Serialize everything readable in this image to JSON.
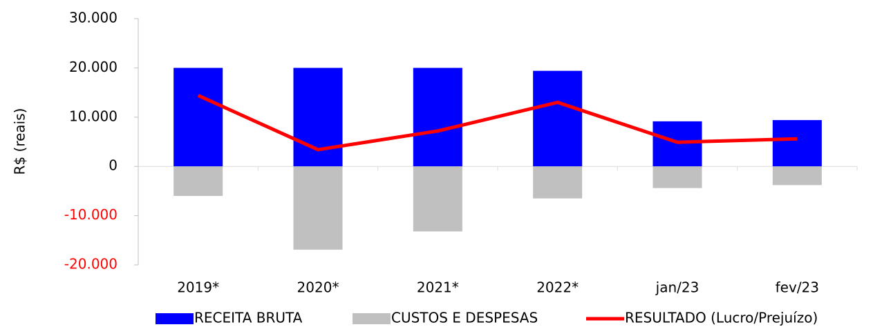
{
  "chart_data": {
    "type": "bar",
    "categories": [
      "2019*",
      "2020*",
      "2021*",
      "2022*",
      "jan/23",
      "fev/23"
    ],
    "series": [
      {
        "name": "RECEITA BRUTA",
        "color": "#0000ff",
        "type": "bar",
        "values": [
          20000,
          20000,
          20000,
          19400,
          9150,
          9400
        ]
      },
      {
        "name": "CUSTOS E DESPESAS",
        "color": "#c0c0c0",
        "type": "bar",
        "values": [
          -6000,
          -16900,
          -13200,
          -6500,
          -4400,
          -3800
        ]
      },
      {
        "name": "RESULTADO (Lucro/Prejuízo)",
        "color": "#ff0000",
        "type": "line",
        "values": [
          14400,
          3400,
          7200,
          13000,
          4900,
          5600
        ]
      }
    ],
    "y_label": "R$ (reais)",
    "ylim": [
      -20000,
      30000
    ],
    "yticks": [
      {
        "value": -20000,
        "label": "-20.000"
      },
      {
        "value": -10000,
        "label": "-10.000"
      },
      0,
      {
        "value": 10000,
        "label": "10.000"
      },
      {
        "value": 20000,
        "label": "20.000"
      },
      {
        "value": 30000,
        "label": "30.000"
      }
    ],
    "negative_tick_color": "#ff0000",
    "grid": false,
    "legend": "bottom"
  }
}
